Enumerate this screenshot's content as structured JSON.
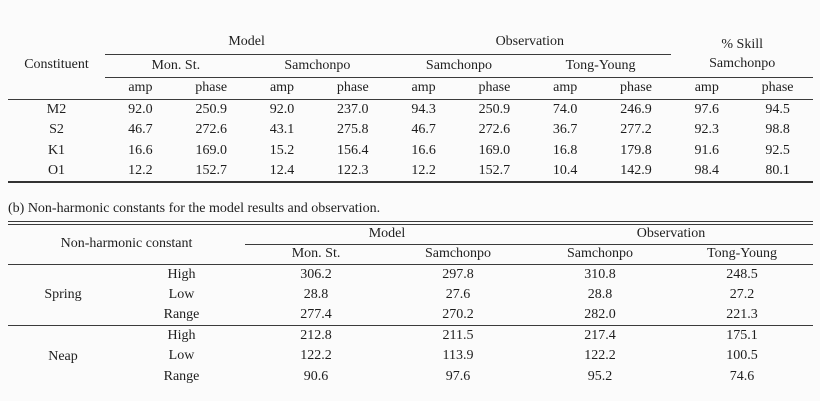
{
  "page": {
    "background": "#fbfbfb",
    "ink": "#1e1e1e",
    "rule_color": "#3b3b3b"
  },
  "table_a": {
    "constituent_header": "Constituent",
    "groups": [
      {
        "label": "Model",
        "stations": [
          "Mon. St.",
          "Samchonpo"
        ]
      },
      {
        "label": "Observation",
        "stations": [
          "Samchonpo",
          "Tong-Young"
        ]
      }
    ],
    "skill_header": {
      "line1": "% Skill",
      "line2": "Samchonpo"
    },
    "subheaders": {
      "amp": "amp",
      "phase": "phase"
    },
    "rows": [
      {
        "constituent": "M2",
        "values": [
          "92.0",
          "250.9",
          "92.0",
          "237.0",
          "94.3",
          "250.9",
          "74.0",
          "246.9",
          "97.6",
          "94.5"
        ]
      },
      {
        "constituent": "S2",
        "values": [
          "46.7",
          "272.6",
          "43.1",
          "275.8",
          "46.7",
          "272.6",
          "36.7",
          "277.2",
          "92.3",
          "98.8"
        ]
      },
      {
        "constituent": "K1",
        "values": [
          "16.6",
          "169.0",
          "15.2",
          "156.4",
          "16.6",
          "169.0",
          "16.8",
          "179.8",
          "91.6",
          "92.5"
        ]
      },
      {
        "constituent": "O1",
        "values": [
          "12.2",
          "152.7",
          "12.4",
          "122.3",
          "12.2",
          "152.7",
          "10.4",
          "142.9",
          "98.4",
          "80.1"
        ]
      }
    ]
  },
  "caption_b": "(b) Non-harmonic constants for the model results and observation.",
  "table_b": {
    "corner_header": "Non-harmonic constant",
    "groups": [
      {
        "label": "Model",
        "stations": [
          "Mon. St.",
          "Samchonpo"
        ]
      },
      {
        "label": "Observation",
        "stations": [
          "Samchonpo",
          "Tong-Young"
        ]
      }
    ],
    "row_groups": [
      {
        "label": "Spring",
        "rows": [
          {
            "type": "High",
            "values": [
              "306.2",
              "297.8",
              "310.8",
              "248.5"
            ]
          },
          {
            "type": "Low",
            "values": [
              "28.8",
              "27.6",
              "28.8",
              "27.2"
            ]
          },
          {
            "type": "Range",
            "values": [
              "277.4",
              "270.2",
              "282.0",
              "221.3"
            ]
          }
        ]
      },
      {
        "label": "Neap",
        "rows": [
          {
            "type": "High",
            "values": [
              "212.8",
              "211.5",
              "217.4",
              "175.1"
            ]
          },
          {
            "type": "Low",
            "values": [
              "122.2",
              "113.9",
              "122.2",
              "100.5"
            ]
          },
          {
            "type": "Range",
            "values": [
              "90.6",
              "97.6",
              "95.2",
              "74.6"
            ]
          }
        ]
      }
    ]
  }
}
